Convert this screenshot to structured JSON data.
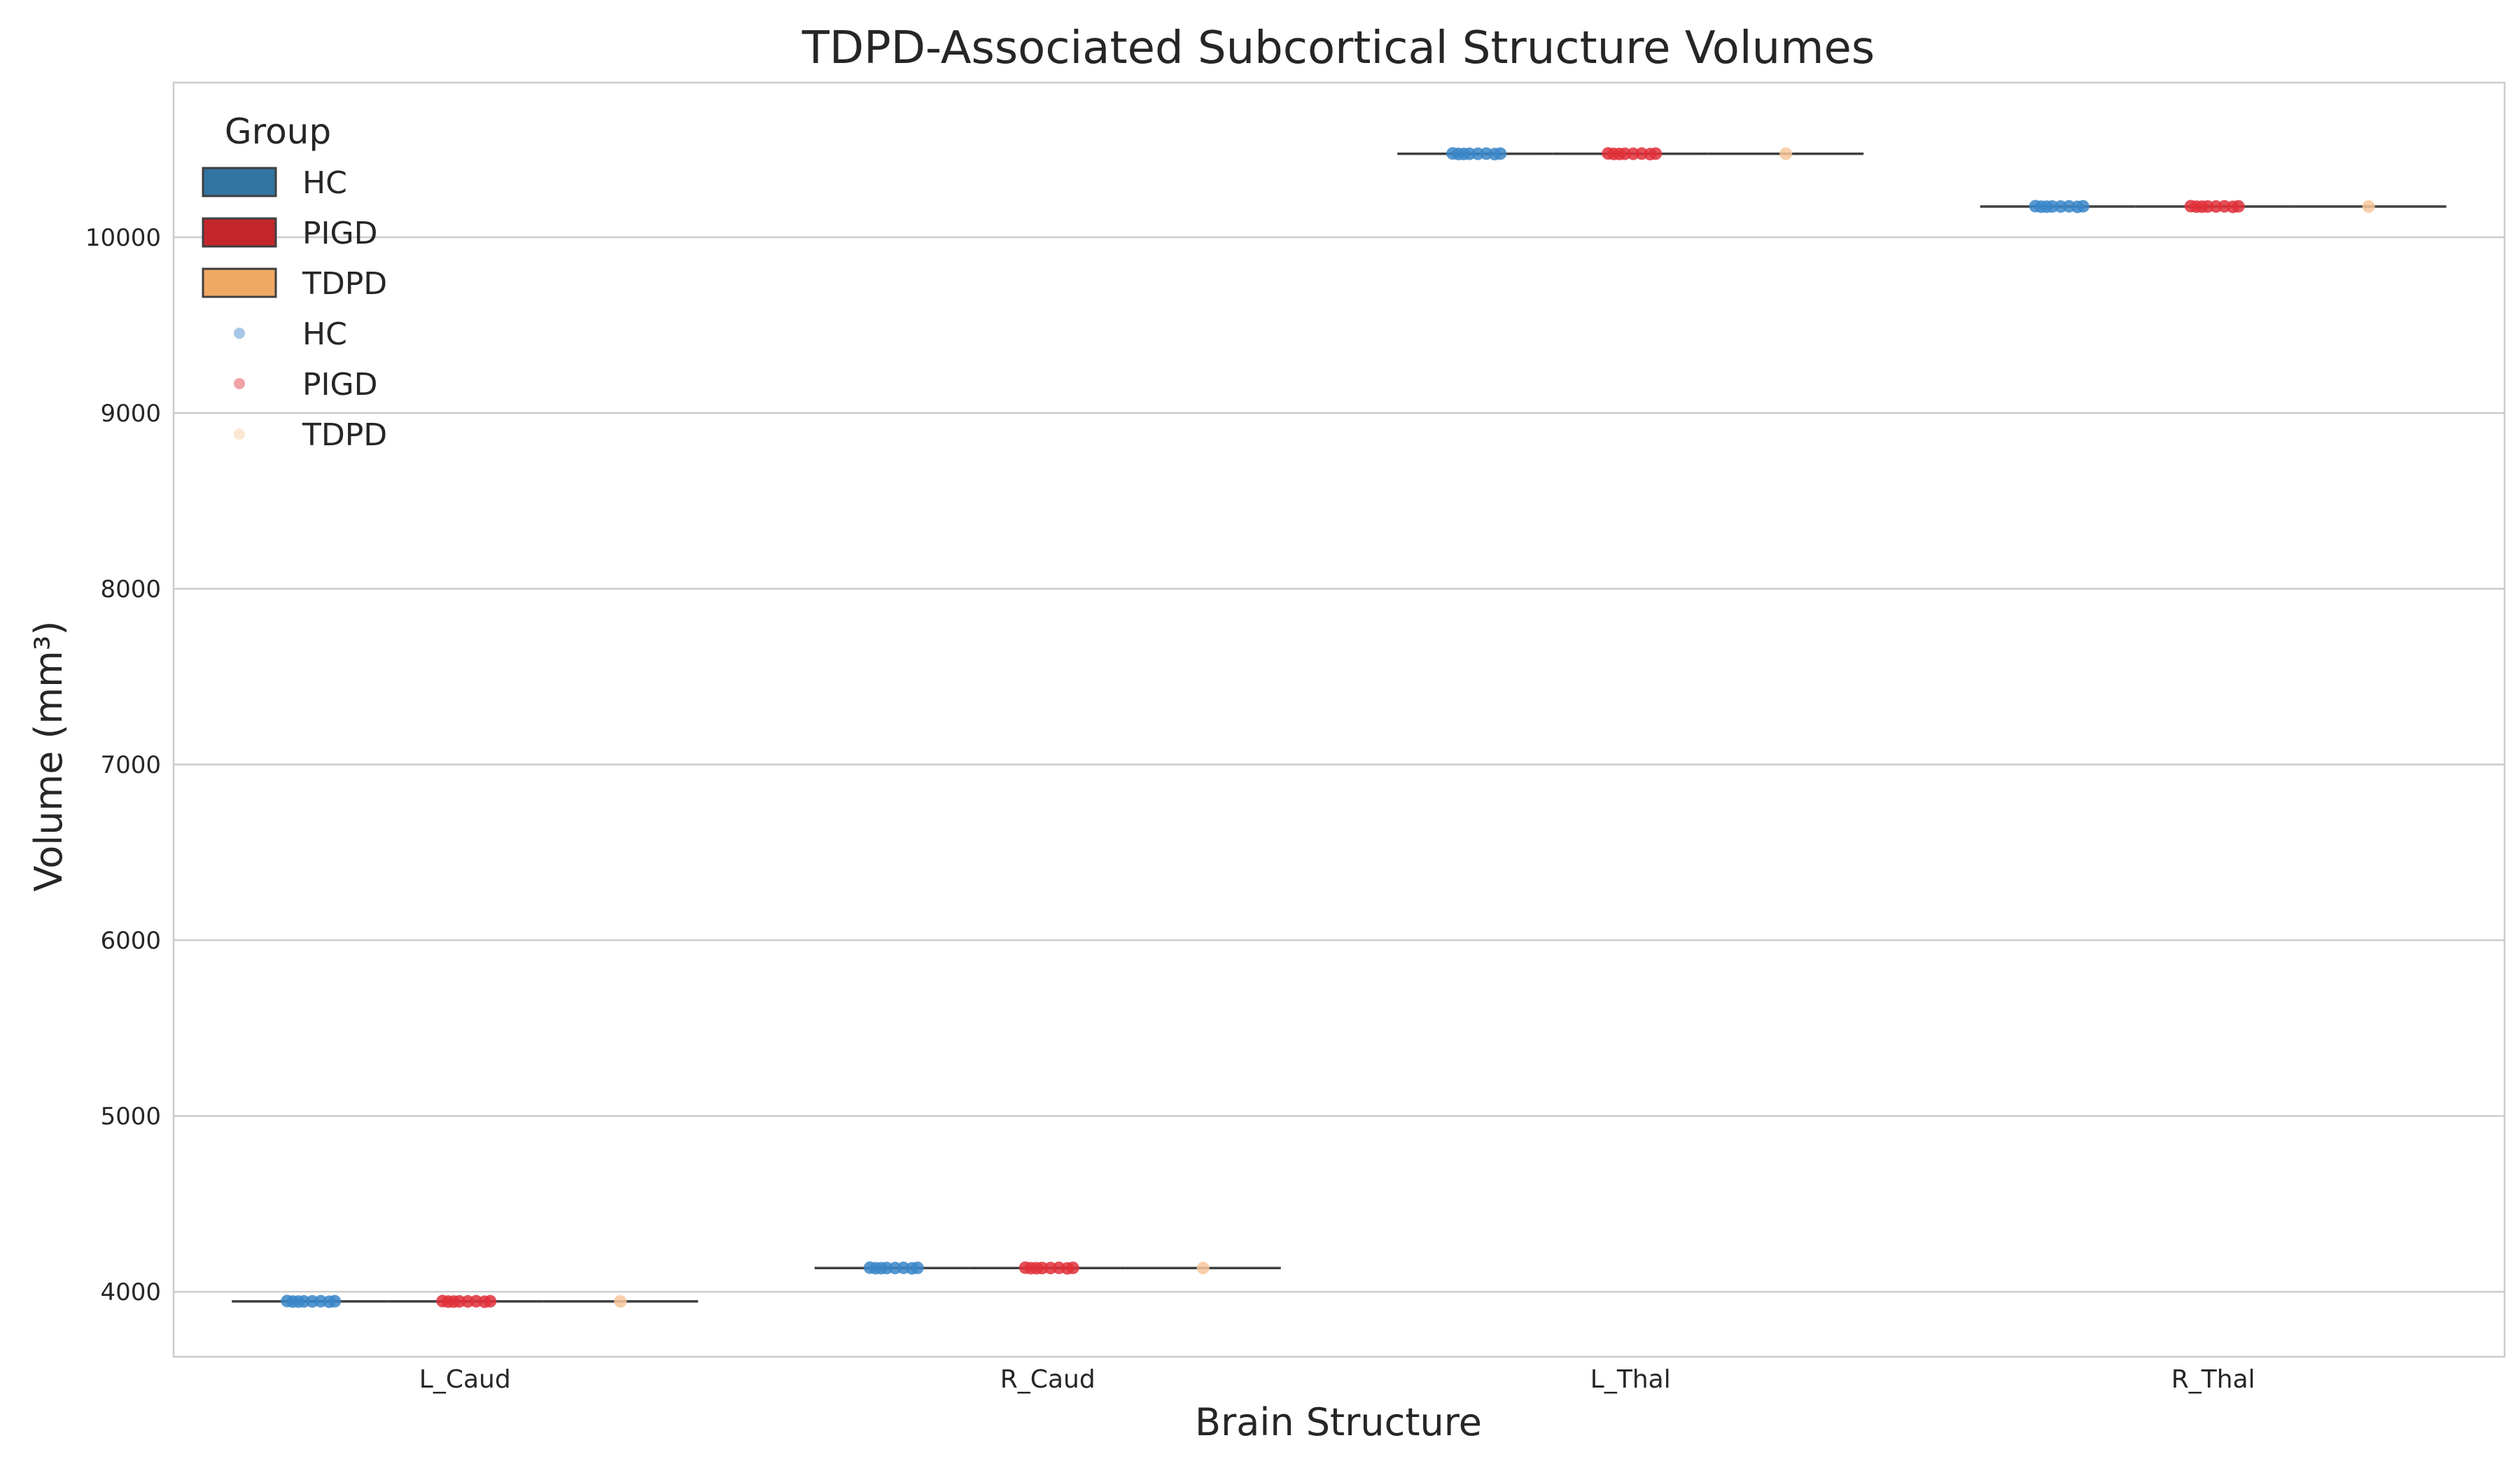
{
  "chart_data": {
    "type": "box",
    "title": "TDPD-Associated Subcortical Structure Volumes",
    "xlabel": "Brain Structure",
    "ylabel": "Volume (mm³)",
    "categories": [
      "L_Caud",
      "R_Caud",
      "L_Thal",
      "R_Thal"
    ],
    "ylim": [
      3630,
      10880
    ],
    "yticks": [
      4000,
      5000,
      6000,
      7000,
      8000,
      9000,
      10000
    ],
    "grid": "horizontal",
    "legend": {
      "title": "Group",
      "placement": "top-left",
      "box_entries": [
        "HC",
        "PIGD",
        "TDPD"
      ],
      "point_entries": [
        "HC",
        "PIGD",
        "TDPD"
      ]
    },
    "series": [
      {
        "name": "HC",
        "color": "#3274a1",
        "values": [
          3945,
          4135,
          10475,
          10175
        ],
        "points": [
          [
            3944,
            3946,
            3945,
            3943,
            3947,
            3945,
            3946,
            3944
          ],
          [
            4134,
            4136,
            4135,
            4133,
            4137,
            4135,
            4136,
            4134
          ],
          [
            10474,
            10476,
            10475,
            10473,
            10477,
            10475,
            10476,
            10474
          ],
          [
            10174,
            10176,
            10175,
            10173,
            10177,
            10175,
            10176,
            10174
          ]
        ]
      },
      {
        "name": "PIGD",
        "color": "#c3272b",
        "values": [
          3945,
          4135,
          10475,
          10175
        ],
        "points": [
          [
            3944,
            3946,
            3945,
            3943,
            3947,
            3945,
            3946,
            3944
          ],
          [
            4134,
            4136,
            4135,
            4133,
            4137,
            4135,
            4136,
            4134
          ],
          [
            10474,
            10476,
            10475,
            10473,
            10477,
            10475,
            10476,
            10474
          ],
          [
            10174,
            10176,
            10175,
            10173,
            10177,
            10175,
            10176,
            10174
          ]
        ]
      },
      {
        "name": "TDPD",
        "color": "#f0a964",
        "values": [
          3945,
          4135,
          10475,
          10175
        ],
        "points": [
          [
            3945
          ],
          [
            4135
          ],
          [
            10475
          ],
          [
            10175
          ]
        ]
      }
    ],
    "point_colors": {
      "HC": "#3a86c8",
      "PIGD": "#e0303a",
      "TDPD": "#f7c79b"
    }
  }
}
